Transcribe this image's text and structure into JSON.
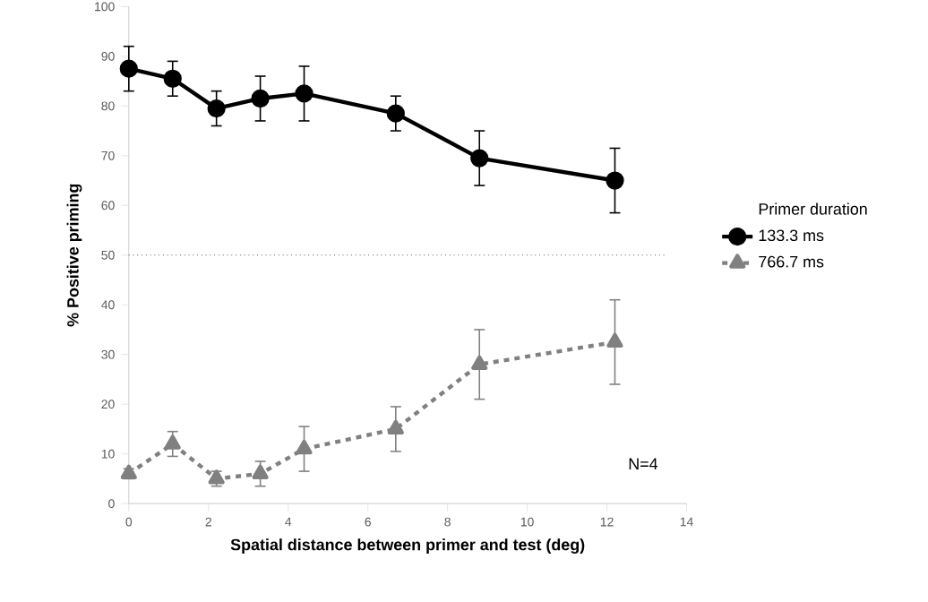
{
  "chart_data": {
    "type": "line",
    "xlabel": "Spatial distance between primer and test (deg)",
    "ylabel": "% Positive priming",
    "legend_title": "Primer duration",
    "legend": "right",
    "grid": false,
    "xlim": [
      0,
      14
    ],
    "xticks": [
      0,
      2,
      4,
      6,
      8,
      10,
      12,
      14
    ],
    "ylim": [
      0,
      100
    ],
    "yticks": [
      0,
      10,
      20,
      30,
      40,
      50,
      60,
      70,
      80,
      90,
      100
    ],
    "series": [
      {
        "name": "133.3 ms",
        "color": "#000000",
        "marker": "circle",
        "line_style": "solid",
        "x": [
          0,
          1.1,
          2.2,
          3.3,
          4.4,
          6.7,
          8.8,
          12.2
        ],
        "values": [
          87.5,
          85.5,
          79.5,
          81.5,
          82.5,
          78.5,
          69.5,
          65
        ],
        "errors": [
          4.5,
          3.5,
          3.5,
          4.5,
          5.5,
          3.5,
          5.5,
          6.5
        ]
      },
      {
        "name": "766.7 ms",
        "color": "#808080",
        "marker": "triangle",
        "line_style": "dashed",
        "x": [
          0,
          1.1,
          2.2,
          3.3,
          4.4,
          6.7,
          8.8,
          12.2
        ],
        "values": [
          6,
          12,
          5,
          6,
          11,
          15,
          28,
          32.5
        ],
        "errors": [
          1,
          2.5,
          1.5,
          2.5,
          4.5,
          4.5,
          7,
          8.5
        ]
      }
    ],
    "ref_lines": [
      {
        "axis": "y",
        "value": 50,
        "line_style": "dotted",
        "color": "#000000"
      }
    ],
    "annotations": [
      "N=4"
    ]
  }
}
